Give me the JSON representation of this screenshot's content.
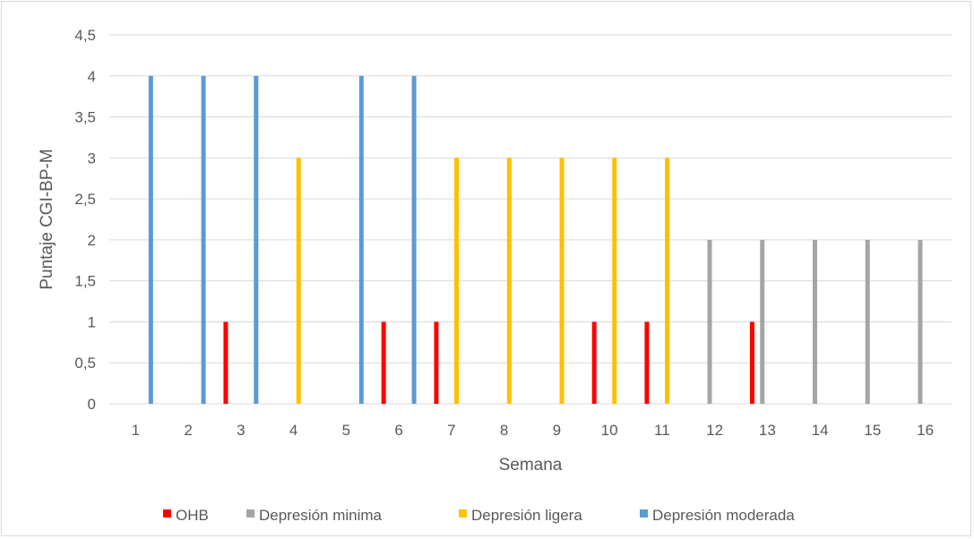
{
  "chart_data": {
    "type": "bar",
    "title": "",
    "xlabel": "Semana",
    "ylabel": "Puntaje CGI-BP-M",
    "ylim": [
      0,
      4.5
    ],
    "y_ticks": [
      "0",
      "0,5",
      "1",
      "1,5",
      "2",
      "2,5",
      "3",
      "3,5",
      "4",
      "4,5"
    ],
    "categories": [
      "1",
      "2",
      "3",
      "4",
      "5",
      "6",
      "7",
      "8",
      "9",
      "10",
      "11",
      "12",
      "13",
      "14",
      "15",
      "16"
    ],
    "grid": true,
    "legend_position": "bottom",
    "series": [
      {
        "name": "OHB",
        "color": "#ff0000",
        "values": [
          null,
          null,
          1,
          null,
          null,
          1,
          1,
          null,
          null,
          1,
          1,
          null,
          1,
          null,
          null,
          null
        ]
      },
      {
        "name": "Depresión minima",
        "color": "#a5a5a5",
        "values": [
          null,
          null,
          null,
          null,
          null,
          null,
          null,
          null,
          null,
          null,
          null,
          2,
          2,
          2,
          2,
          2
        ]
      },
      {
        "name": "Depresión ligera",
        "color": "#ffc000",
        "values": [
          null,
          null,
          null,
          3,
          null,
          null,
          3,
          3,
          3,
          3,
          3,
          null,
          null,
          null,
          null,
          null
        ]
      },
      {
        "name": "Depresión moderada",
        "color": "#5b9bd5",
        "values": [
          4,
          4,
          4,
          null,
          4,
          4,
          null,
          null,
          null,
          null,
          null,
          null,
          null,
          null,
          null,
          null
        ]
      }
    ]
  }
}
